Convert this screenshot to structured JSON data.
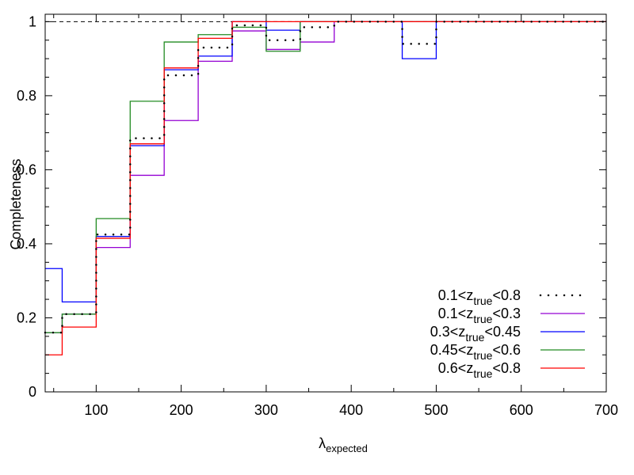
{
  "chart_data": {
    "type": "line",
    "step": true,
    "title": "",
    "xlabel_main": "λ",
    "xlabel_sub": "expected",
    "ylabel": "Completeness",
    "xlim": [
      40,
      700
    ],
    "ylim": [
      0,
      1.02
    ],
    "xticks": [
      100,
      200,
      300,
      400,
      500,
      600,
      700
    ],
    "yticks": [
      0,
      0.2,
      0.4,
      0.6,
      0.8,
      1
    ],
    "ytick_labels": [
      "0",
      "0.2",
      "0.4",
      "0.6",
      "0.8",
      "1"
    ],
    "reference_line": 1,
    "legend_position": "bottom-right",
    "bin_edges": [
      40,
      60,
      100,
      140,
      180,
      220,
      260,
      300,
      340,
      380,
      420,
      460,
      500,
      540,
      580,
      620,
      660,
      700
    ],
    "series": [
      {
        "name": "0.1<z_true<0.8",
        "legend_pre": "0.1<z",
        "legend_sub": "true",
        "legend_post": "<0.8",
        "color": "#000000",
        "style": "dotted",
        "values": [
          0.16,
          0.21,
          0.425,
          0.685,
          0.855,
          0.93,
          0.99,
          0.95,
          0.985,
          1,
          1,
          0.94,
          1,
          1,
          1,
          1,
          1
        ]
      },
      {
        "name": "0.1<z_true<0.3",
        "legend_pre": "0.1<z",
        "legend_sub": "true",
        "legend_post": "<0.3",
        "color": "#9400d3",
        "style": "solid",
        "values": [
          0.16,
          0.21,
          0.39,
          0.585,
          0.733,
          0.893,
          0.975,
          0.925,
          0.945,
          1,
          1,
          1,
          1,
          1,
          1,
          1,
          1
        ]
      },
      {
        "name": "0.3<z_true<0.45",
        "legend_pre": "0.3<z",
        "legend_sub": "true",
        "legend_post": "<0.45",
        "color": "#0000ff",
        "style": "solid",
        "values": [
          0.333,
          0.243,
          0.42,
          0.665,
          0.87,
          0.907,
          1,
          0.977,
          1,
          1,
          1,
          0.9,
          1,
          1,
          1,
          1,
          1
        ]
      },
      {
        "name": "0.45<z_true<0.6",
        "legend_pre": "0.45<z",
        "legend_sub": "true",
        "legend_post": "<0.6",
        "color": "#228b22",
        "style": "solid",
        "values": [
          0.16,
          0.21,
          0.468,
          0.785,
          0.945,
          0.965,
          0.985,
          0.92,
          1,
          1,
          1,
          1,
          1,
          1,
          1,
          1,
          1
        ]
      },
      {
        "name": "0.6<z_true<0.8",
        "legend_pre": "0.6<z",
        "legend_sub": "true",
        "legend_post": "<0.8",
        "color": "#ff0000",
        "style": "solid",
        "values": [
          0.1,
          0.175,
          0.415,
          0.67,
          0.875,
          0.955,
          1,
          1,
          1,
          1,
          1,
          1,
          1,
          1,
          1,
          1,
          1
        ]
      }
    ]
  }
}
